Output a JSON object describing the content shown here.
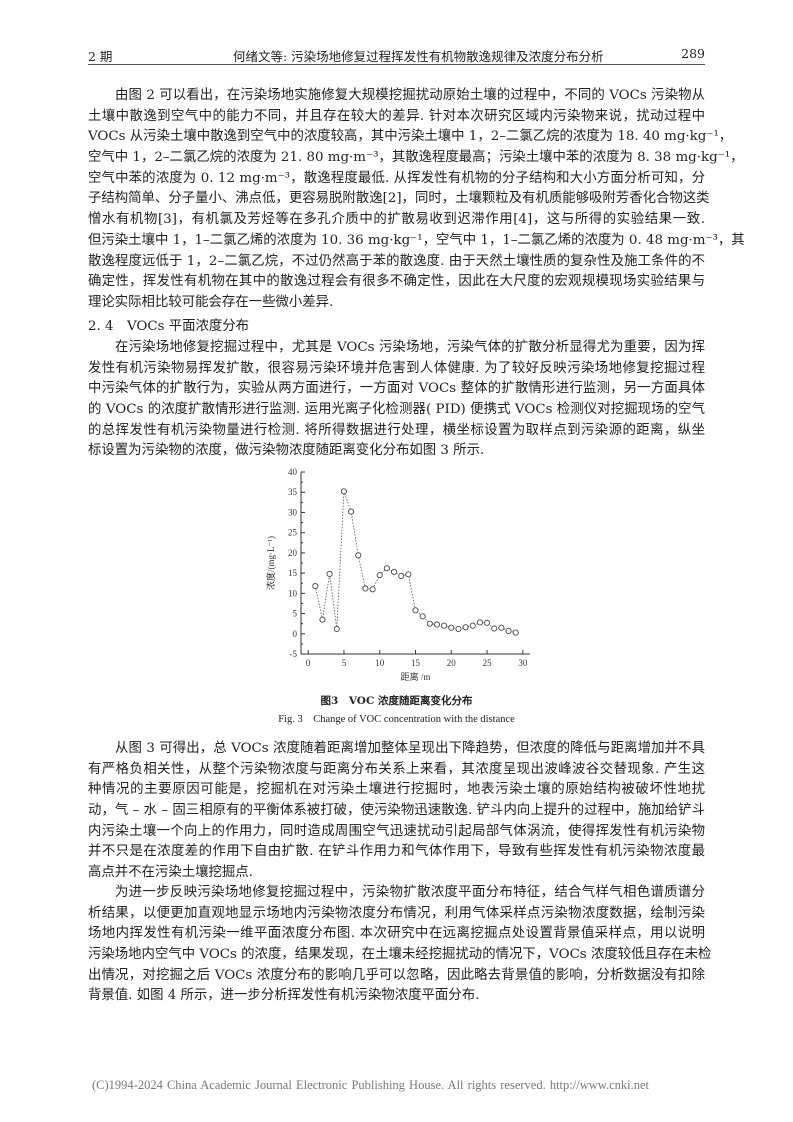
{
  "header": {
    "issue": "2 期",
    "title": "何绪文等: 污染场地修复过程挥发性有机物散逸规律及浓度分布分析",
    "page": "289"
  },
  "para1": [
    "由图 2 可以看出，在污染场地实施修复大规模挖掘扰动原始土壤的过程中，不同的 VOCs 污染物从",
    "土壤中散逸到空气中的能力不同，并且存在较大的差异. 针对本次研究区域内污染物来说，扰动过程中",
    "VOCs 从污染土壤中散逸到空气中的浓度较高，其中污染土壤中 1，2–二氯乙烷的浓度为 18. 40 mg·kg⁻¹，",
    "空气中 1，2–二氯乙烷的浓度为 21. 80 mg·m⁻³，其散逸程度最高；污染土壤中苯的浓度为 8. 38 mg·kg⁻¹，",
    "空气中苯的浓度为 0. 12 mg·m⁻³，散逸程度最低. 从挥发性有机物的分子结构和大小方面分析可知，分",
    "子结构简单、分子量小、沸点低，更容易脱附散逸[2]，同时，土壤颗粒及有机质能够吸附芳香化合物这类",
    "憎水有机物[3]，有机氯及芳烃等在多孔介质中的扩散易收到迟滞作用[4]，这与所得的实验结果一致.",
    "但污染土壤中 1，1–二氯乙烯的浓度为 10. 36 mg·kg⁻¹，空气中 1，1–二氯乙烯的浓度为 0. 48 mg·m⁻³，其",
    "散逸程度远低于 1，2–二氯乙烷，不过仍然高于苯的散逸度. 由于天然土壤性质的复杂性及施工条件的不",
    "确定性，挥发性有机物在其中的散逸过程会有很多不确定性，因此在大尺度的宏观规模现场实验结果与",
    "理论实际相比较可能会存在一些微小差异."
  ],
  "section_heading": "2. 4　VOCs 平面浓度分布",
  "para2": [
    "在污染场地修复挖掘过程中，尤其是 VOCs 污染场地，污染气体的扩散分析显得尤为重要，因为挥",
    "发性有机污染物易挥发扩散，很容易污染环境并危害到人体健康. 为了较好反映污染场地修复挖掘过程",
    "中污染气体的扩散行为，实验从两方面进行，一方面对 VOCs 整体的扩散情形进行监测，另一方面具体",
    "的 VOCs 的浓度扩散情形进行监测. 运用光离子化检测器( PID) 便携式 VOCs 检测仪对挖掘现场的空气",
    "的总挥发性有机污染物量进行检测. 将所得数据进行处理，横坐标设置为取样点到污染源的距离，纵坐",
    "标设置为污染物的浓度，做污染物浓度随距离变化分布如图 3 所示."
  ],
  "figure": {
    "caption_cn": "图3　VOC 浓度随距离变化分布",
    "caption_en": "Fig. 3　Change of VOC concentration with the distance"
  },
  "chart_data": {
    "type": "line",
    "xlabel": "距离 /m",
    "ylabel": "浓度/(mg·L⁻¹)",
    "xlim": [
      -1,
      31
    ],
    "ylim": [
      -5,
      40
    ],
    "xticks": [
      0,
      5,
      10,
      15,
      20,
      25,
      30
    ],
    "yticks": [
      -5,
      0,
      5,
      10,
      15,
      20,
      25,
      30,
      35,
      40
    ],
    "x": [
      1,
      2,
      3,
      4,
      5,
      6,
      7,
      8,
      9,
      10,
      11,
      12,
      13,
      14,
      15,
      16,
      17,
      18,
      19,
      20,
      21,
      22,
      23,
      24,
      25,
      26,
      27,
      28,
      29
    ],
    "y": [
      11.8,
      3.5,
      14.8,
      1.2,
      35.2,
      30.2,
      19.4,
      11.2,
      11.0,
      14.5,
      16.2,
      15.3,
      14.3,
      14.7,
      5.8,
      4.3,
      2.5,
      2.3,
      2.0,
      1.5,
      1.2,
      1.6,
      2.0,
      2.8,
      2.7,
      1.3,
      1.5,
      0.7,
      0.3
    ],
    "line_style": "dotted",
    "marker": "open-circle",
    "grid": false
  },
  "para3": [
    "从图 3 可得出，总 VOCs 浓度随着距离增加整体呈现出下降趋势，但浓度的降低与距离增加并不具",
    "有严格负相关性，从整个污染物浓度与距离分布关系上来看，其浓度呈现出波峰波谷交替现象. 产生这",
    "种情况的主要原因可能是，挖掘机在对污染土壤进行挖掘时，地表污染土壤的原始结构被破坏性地扰",
    "动，气 – 水 – 固三相原有的平衡体系被打破，使污染物迅速散逸. 铲斗内向上提升的过程中，施加给铲斗",
    "内污染土壤一个向上的作用力，同时造成周围空气迅速扰动引起局部气体涡流，使得挥发性有机污染物",
    "并不只是在浓度差的作用下自由扩散. 在铲斗作用力和气体作用下，导致有些挥发性有机污染物浓度最",
    "高点并不在污染土壤挖掘点."
  ],
  "para4": [
    "为进一步反映污染场地修复挖掘过程中，污染物扩散浓度平面分布特征，结合气样气相色谱质谱分",
    "析结果，以便更加直观地显示场地内污染物浓度分布情况，利用气体采样点污染物浓度数据，绘制污染",
    "场地内挥发性有机污染一维平面浓度分布图. 本次研究中在远离挖掘点处设置背景值采样点，用以说明",
    "污染场地内空气中 VOCs 的浓度，结果发现，在土壤未经挖掘扰动的情况下，VOCs 浓度较低且存在未检",
    "出情况，对挖掘之后 VOCs 浓度分布的影响几乎可以忽略，因此略去背景值的影响，分析数据没有扣除",
    "背景值. 如图 4 所示，进一步分析挥发性有机污染物浓度平面分布."
  ],
  "footer": "(C)1994-2024 China Academic Journal Electronic Publishing House. All rights reserved.    http://www.cnki.net"
}
